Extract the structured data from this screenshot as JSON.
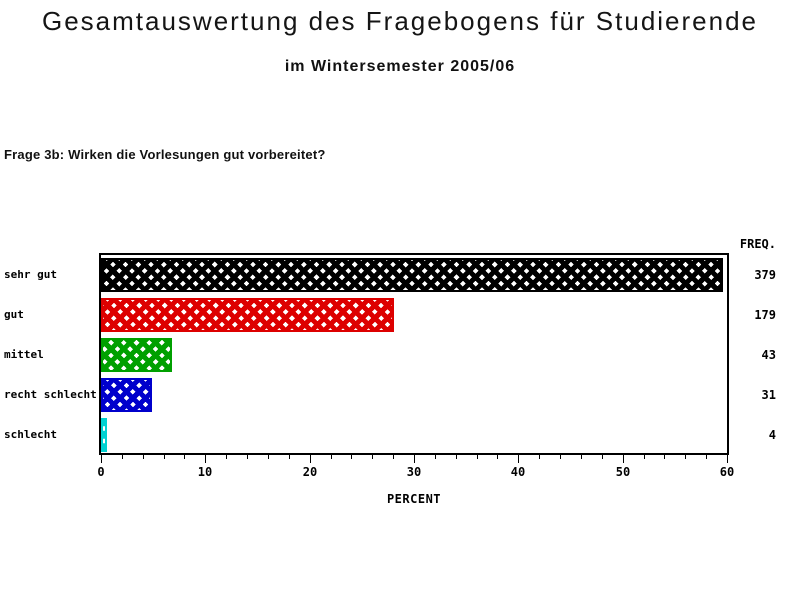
{
  "header": {
    "title": "Gesamtauswertung des Fragebogens für Studierende",
    "subtitle": "im Wintersemester 2005/06"
  },
  "question": "Frage 3b: Wirken die Vorlesungen gut vorbereitet?",
  "chart_data": {
    "type": "bar",
    "orientation": "horizontal",
    "title": "Gesamtauswertung des Fragebogens für Studierende",
    "subtitle": "im Wintersemester 2005/06",
    "annotation": "Frage 3b: Wirken die Vorlesungen gut vorbereitet?",
    "categories": [
      "sehr gut",
      "gut",
      "mittel",
      "recht schlecht",
      "schlecht"
    ],
    "values_percent": [
      59.6,
      28.1,
      6.8,
      4.9,
      0.6
    ],
    "frequencies": [
      379,
      179,
      43,
      31,
      4
    ],
    "freq_header": "FREQ.",
    "xlabel": "PERCENT",
    "ylabel": "",
    "xlim": [
      0,
      60
    ],
    "x_major_ticks": [
      0,
      10,
      20,
      30,
      40,
      50,
      60
    ],
    "x_minor_step": 2,
    "grid": false,
    "frame": true,
    "pattern": "crosshatch",
    "bar_colors": [
      "#000000",
      "#dd0000",
      "#00a000",
      "#0000cc",
      "#00d2d2"
    ],
    "legend_position": "none"
  }
}
